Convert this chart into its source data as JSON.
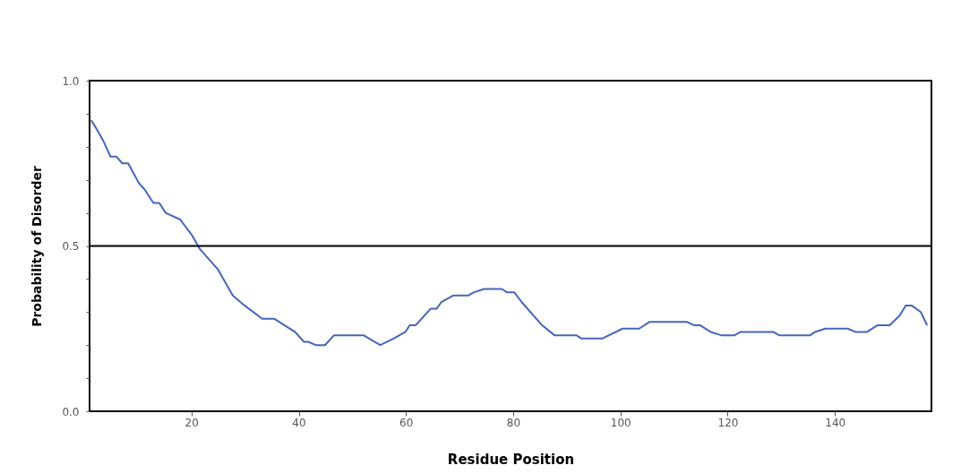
{
  "chart_data": {
    "type": "line",
    "xlabel": "Residue Position",
    "ylabel": "Probability of Disorder",
    "xlim": [
      1,
      158
    ],
    "xticks": [
      20,
      40,
      60,
      80,
      100,
      120,
      140
    ],
    "ylim": [
      0,
      1
    ],
    "yticks": [
      {
        "value": 0,
        "label": "0.0"
      },
      {
        "value": 0.1,
        "label": null
      },
      {
        "value": 0.2,
        "label": null
      },
      {
        "value": 0.3,
        "label": null
      },
      {
        "value": 0.4,
        "label": null
      },
      0.5,
      {
        "value": 0.6,
        "label": null
      },
      {
        "value": 0.7,
        "label": null
      },
      {
        "value": 0.8,
        "label": null
      },
      {
        "value": 0.9,
        "label": null
      },
      {
        "value": 1,
        "label": "1.0"
      }
    ],
    "grid": false,
    "marker": "none",
    "line_style": "solid",
    "ref_lines": [
      {
        "axis": "y",
        "value": 0.5,
        "color": "#000000"
      }
    ],
    "series": [
      {
        "color": "#4466bb",
        "x": [
          1.3,
          2.1,
          3.5,
          4.9,
          6,
          7.1,
          8.2,
          10.2,
          11.3,
          12.9,
          14,
          15.2,
          17.9,
          20.2,
          21.6,
          24.9,
          27.7,
          29.9,
          33.2,
          35.4,
          39.3,
          41,
          41.8,
          43.2,
          44.9,
          46.6,
          50.7,
          52.1,
          55.2,
          57.7,
          59.9,
          60.7,
          61.8,
          64.6,
          65.7,
          66.6,
          68.8,
          71.6,
          72.7,
          74.6,
          77.9,
          78.8,
          80.2,
          81.6,
          85.4,
          87.7,
          91.8,
          92.7,
          96.6,
          100.4,
          103.5,
          105.4,
          112.4,
          113.8,
          114.9,
          116.8,
          118.8,
          121.3,
          122.4,
          128.5,
          129.6,
          135.4,
          136.3,
          138.2,
          142.4,
          143.8,
          146,
          147.9,
          150.2,
          152.1,
          153.2,
          154.3,
          156,
          157.2
        ],
        "values": [
          0.88,
          0.86,
          0.82,
          0.77,
          0.77,
          0.75,
          0.75,
          0.69,
          0.67,
          0.63,
          0.63,
          0.6,
          0.58,
          0.53,
          0.49,
          0.43,
          0.35,
          0.32,
          0.28,
          0.28,
          0.24,
          0.21,
          0.21,
          0.2,
          0.2,
          0.23,
          0.23,
          0.23,
          0.2,
          0.22,
          0.24,
          0.26,
          0.26,
          0.31,
          0.31,
          0.33,
          0.35,
          0.35,
          0.36,
          0.37,
          0.37,
          0.36,
          0.36,
          0.33,
          0.26,
          0.23,
          0.23,
          0.22,
          0.22,
          0.25,
          0.25,
          0.27,
          0.27,
          0.26,
          0.26,
          0.24,
          0.23,
          0.23,
          0.24,
          0.24,
          0.23,
          0.23,
          0.24,
          0.25,
          0.25,
          0.24,
          0.24,
          0.26,
          0.26,
          0.29,
          0.32,
          0.32,
          0.3,
          0.26
        ]
      }
    ]
  }
}
